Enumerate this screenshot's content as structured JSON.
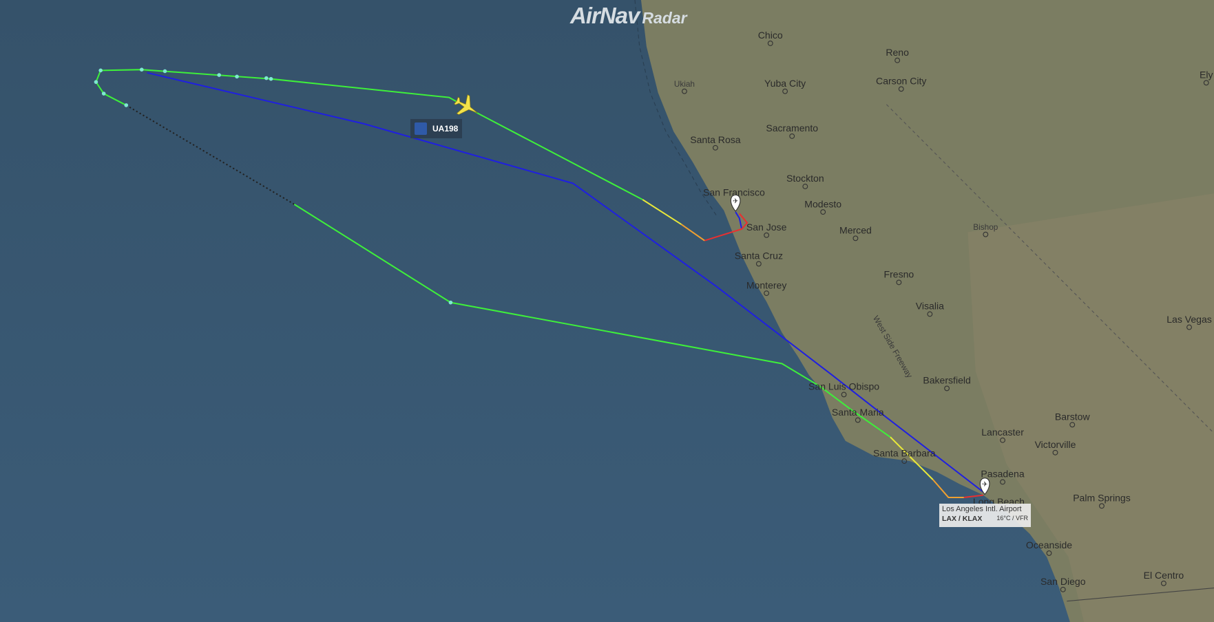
{
  "brand": {
    "name": "AirNav",
    "suffix": "Radar"
  },
  "flight": {
    "callsign": "UA198",
    "airline_logo": "united-airlines-logo",
    "aircraft_color": "#f2e24a"
  },
  "airport_tooltip": {
    "name": "Los Angeles Intl. Airport",
    "codes": "LAX / KLAX",
    "weather": "16°C / VFR"
  },
  "colors": {
    "ocean": "#3a5a74",
    "land": "#7b7d62",
    "track_green": "#3ef03a",
    "track_blue": "#1f1fe0",
    "track_yellow": "#e8e83a",
    "track_orange": "#f0a030",
    "track_red": "#e83030"
  },
  "map_labels": [
    "Chico",
    "Reno",
    "Yuba City",
    "Carson City",
    "Ukiah",
    "Sacramento",
    "Santa Rosa",
    "San Francisco",
    "Stockton",
    "Modesto",
    "San Jose",
    "Merced",
    "Bishop",
    "Santa Cruz",
    "Fresno",
    "Monterey",
    "Visalia",
    "West Side Freeway",
    "Las Vegas",
    "Bakersfield",
    "San Luis Obispo",
    "Santa Maria",
    "Barstow",
    "Lancaster",
    "Victorville",
    "Santa Barbara",
    "Pasadena",
    "Long Beach",
    "Palm Springs",
    "Oceanside",
    "San Diego",
    "El Centro",
    "Ely"
  ]
}
